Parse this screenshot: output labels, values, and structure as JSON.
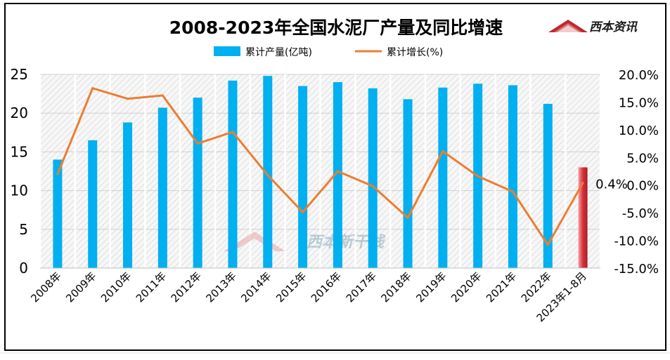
{
  "chart_data": {
    "type": "bar+line",
    "title": "2008-2023年全国水泥厂产量及同比增速",
    "categories": [
      "2008年",
      "2009年",
      "2010年",
      "2011年",
      "2012年",
      "2013年",
      "2014年",
      "2015年",
      "2016年",
      "2017年",
      "2018年",
      "2019年",
      "2020年",
      "2021年",
      "2022年",
      "2023年1-8月"
    ],
    "series": [
      {
        "name": "累计产量(亿吨)",
        "type": "bar",
        "axis": "left",
        "color": "#00b0f0",
        "values": [
          14.0,
          16.5,
          18.8,
          20.7,
          22.0,
          24.2,
          24.8,
          23.5,
          24.0,
          23.2,
          21.8,
          23.3,
          23.8,
          23.6,
          21.2,
          13.0
        ]
      },
      {
        "name": "累计增长(%)",
        "type": "line",
        "axis": "right",
        "color": "#ed7d31",
        "values": [
          2.0,
          17.5,
          15.6,
          16.2,
          7.5,
          9.6,
          1.8,
          -4.9,
          2.5,
          -0.2,
          -5.9,
          6.1,
          1.6,
          -1.2,
          -10.8,
          0.4
        ]
      }
    ],
    "highlight_last_bar_color": "#d9303a",
    "data_label_last": "0.4%",
    "y_left": {
      "min": 0,
      "max": 25,
      "ticks": [
        "0",
        "5",
        "10",
        "15",
        "20",
        "25"
      ]
    },
    "y_right": {
      "min": -15,
      "max": 20,
      "ticks": [
        "-15.0%",
        "-10.0%",
        "-5.0%",
        "0.0%",
        "5.0%",
        "10.0%",
        "15.0%",
        "20.0%"
      ]
    },
    "legend_position": "top-center",
    "grid": true
  },
  "watermark": {
    "logo_text": "西本资讯",
    "center_text": "西本新干线"
  }
}
